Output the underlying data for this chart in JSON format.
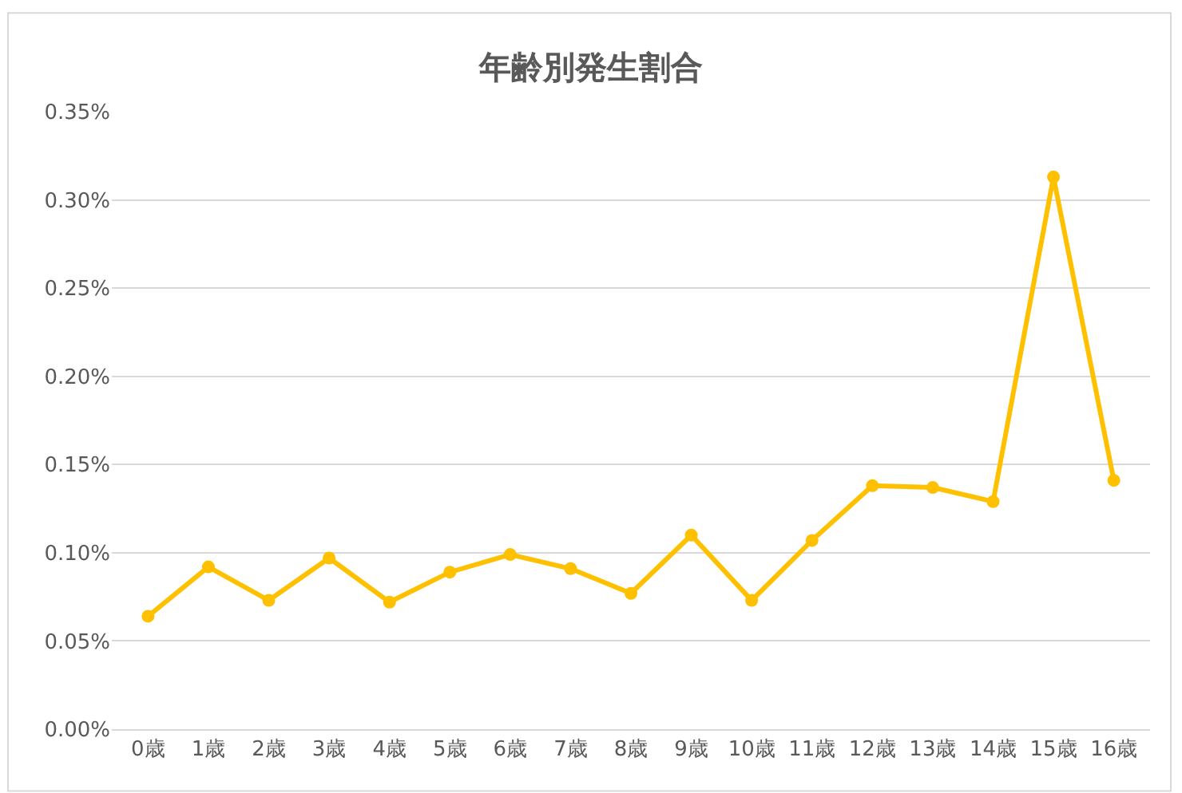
{
  "chart_data": {
    "type": "line",
    "title": "年齢別発生割合",
    "categories": [
      "0歳",
      "1歳",
      "2歳",
      "3歳",
      "4歳",
      "5歳",
      "6歳",
      "7歳",
      "8歳",
      "9歳",
      "10歳",
      "11歳",
      "12歳",
      "13歳",
      "14歳",
      "15歳",
      "16歳"
    ],
    "series": [
      {
        "color": "#ffc000",
        "values": [
          0.064,
          0.092,
          0.073,
          0.097,
          0.072,
          0.089,
          0.099,
          0.091,
          0.077,
          0.11,
          0.073,
          0.107,
          0.138,
          0.137,
          0.129,
          0.313,
          0.141
        ]
      }
    ],
    "ylim": [
      0,
      0.35
    ],
    "yticks": [
      {
        "value": 0,
        "label": "0.00%"
      },
      {
        "value": 0.05,
        "label": "0.05%"
      },
      {
        "value": 0.1,
        "label": "0.10%"
      },
      {
        "value": 0.15,
        "label": "0.15%"
      },
      {
        "value": 0.2,
        "label": "0.20%"
      },
      {
        "value": 0.25,
        "label": "0.25%"
      },
      {
        "value": 0.3,
        "label": "0.30%"
      },
      {
        "value": 0.35,
        "label": "0.35%"
      }
    ],
    "grid": "y",
    "legend": false,
    "marker": "circle",
    "line_style": "solid"
  }
}
